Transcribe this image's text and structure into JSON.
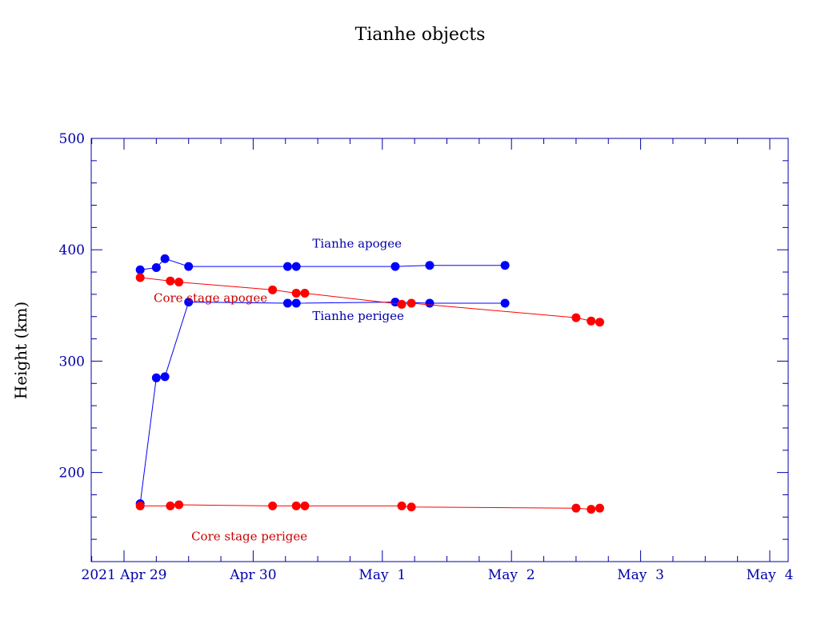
{
  "chart_data": {
    "type": "line",
    "title": "Tianhe objects",
    "xlabel": "",
    "ylabel": "Height (km)",
    "xlim": [
      "2021-04-29T00:00",
      "2021-05-04T00:00"
    ],
    "ylim": [
      120,
      500
    ],
    "xticks": [
      {
        "value": "2021-04-29T00:00",
        "label": "2021 Apr 29"
      },
      {
        "value": "2021-04-30T00:00",
        "label": "Apr 30"
      },
      {
        "value": "2021-05-01T00:00",
        "label": "May  1"
      },
      {
        "value": "2021-05-02T00:00",
        "label": "May  2"
      },
      {
        "value": "2021-05-03T00:00",
        "label": "May  3"
      },
      {
        "value": "2021-05-04T00:00",
        "label": "May  4"
      }
    ],
    "yticks": [
      200,
      300,
      400,
      500
    ],
    "grid": false,
    "colors": {
      "tianhe": "#0000ff",
      "core": "#ff0000",
      "axis": "#0000aa",
      "text": "#0000aa",
      "core_text": "#cc0000"
    },
    "series": [
      {
        "name": "Tianhe apogee",
        "color": "#0000ff",
        "label_at": [
          "2021-04-30T11:00",
          402
        ],
        "points": [
          [
            "2021-04-29T03:00",
            382
          ],
          [
            "2021-04-29T06:00",
            384
          ],
          [
            "2021-04-29T07:36",
            392
          ],
          [
            "2021-04-29T12:00",
            385
          ],
          [
            "2021-04-30T06:24",
            385
          ],
          [
            "2021-04-30T08:00",
            385
          ],
          [
            "2021-05-01T02:24",
            385
          ],
          [
            "2021-05-01T08:48",
            386
          ],
          [
            "2021-05-01T22:48",
            386
          ]
        ]
      },
      {
        "name": "Tianhe perigee",
        "color": "#0000ff",
        "label_at": [
          "2021-04-30T11:00",
          337
        ],
        "points": [
          [
            "2021-04-29T03:00",
            172
          ],
          [
            "2021-04-29T06:00",
            285
          ],
          [
            "2021-04-29T07:36",
            286
          ],
          [
            "2021-04-29T12:00",
            353
          ],
          [
            "2021-04-30T06:24",
            352
          ],
          [
            "2021-04-30T08:00",
            352
          ],
          [
            "2021-05-01T02:24",
            353
          ],
          [
            "2021-05-01T08:48",
            352
          ],
          [
            "2021-05-01T22:48",
            352
          ]
        ]
      },
      {
        "name": "Core stage apogee",
        "color": "#ff0000",
        "label_at": [
          "2021-04-29T05:30",
          353
        ],
        "points": [
          [
            "2021-04-29T03:00",
            375
          ],
          [
            "2021-04-29T08:36",
            372
          ],
          [
            "2021-04-29T10:12",
            371
          ],
          [
            "2021-04-30T03:36",
            364
          ],
          [
            "2021-04-30T08:00",
            361
          ],
          [
            "2021-04-30T09:36",
            361
          ],
          [
            "2021-05-01T03:36",
            351
          ],
          [
            "2021-05-01T05:24",
            352
          ],
          [
            "2021-05-02T12:00",
            339
          ],
          [
            "2021-05-02T14:48",
            336
          ],
          [
            "2021-05-02T16:24",
            335
          ]
        ]
      },
      {
        "name": "Core stage perigee",
        "color": "#ff0000",
        "label_at": [
          "2021-04-29T12:30",
          139
        ],
        "points": [
          [
            "2021-04-29T03:00",
            170
          ],
          [
            "2021-04-29T08:36",
            170
          ],
          [
            "2021-04-29T10:12",
            171
          ],
          [
            "2021-04-30T03:36",
            170
          ],
          [
            "2021-04-30T08:00",
            170
          ],
          [
            "2021-04-30T09:36",
            170
          ],
          [
            "2021-05-01T03:36",
            170
          ],
          [
            "2021-05-01T05:24",
            169
          ],
          [
            "2021-05-02T12:00",
            168
          ],
          [
            "2021-05-02T14:48",
            167
          ],
          [
            "2021-05-02T16:24",
            168
          ]
        ]
      }
    ]
  }
}
